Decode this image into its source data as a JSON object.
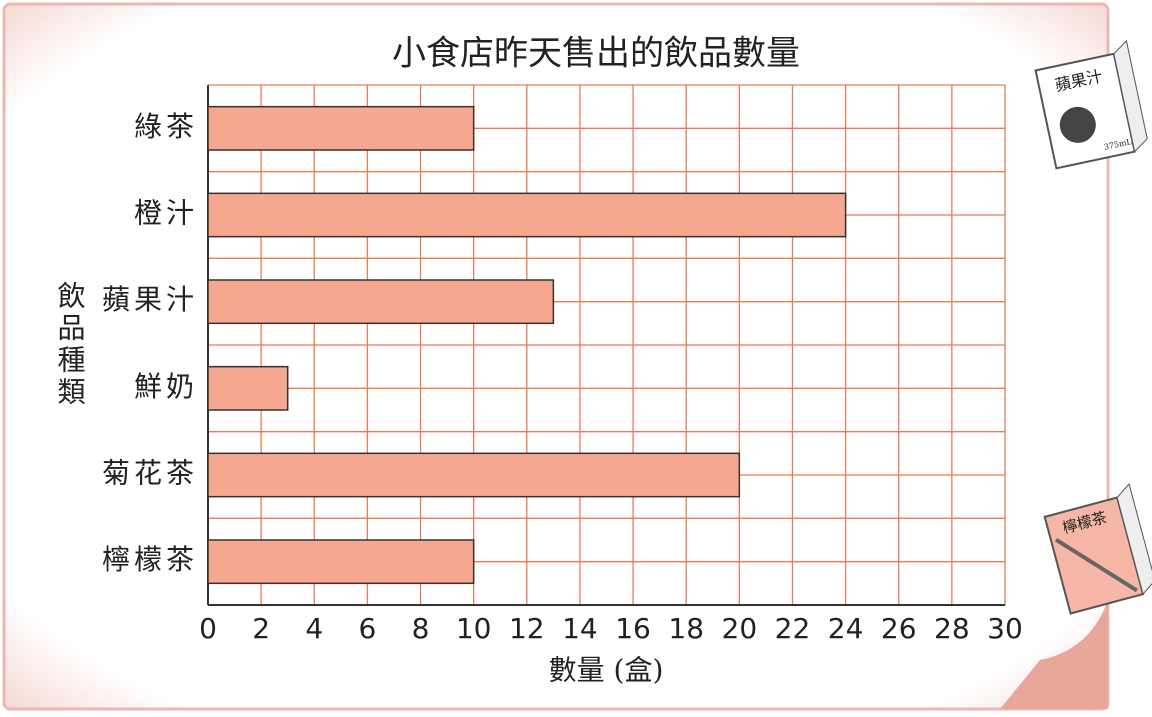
{
  "chart_data": {
    "type": "bar",
    "orientation": "horizontal",
    "title": "小食店昨天售出的飲品數量",
    "x_label": "數量 (盒)",
    "y_label": "飲品種類",
    "categories": [
      "綠茶",
      "橙汁",
      "蘋果汁",
      "鮮奶",
      "菊花茶",
      "檸檬茶"
    ],
    "values": [
      10,
      24,
      13,
      3,
      20,
      10
    ],
    "color": "#f6a78f",
    "xlim": [
      0,
      30
    ],
    "xticks": [
      0,
      2,
      4,
      6,
      8,
      10,
      12,
      14,
      16,
      18,
      20,
      22,
      24,
      26,
      28,
      30
    ],
    "grid": true
  },
  "decorations": {
    "apple_box": "蘋果汁",
    "apple_volume": "375mL",
    "lemon_box": "檸檬茶"
  }
}
